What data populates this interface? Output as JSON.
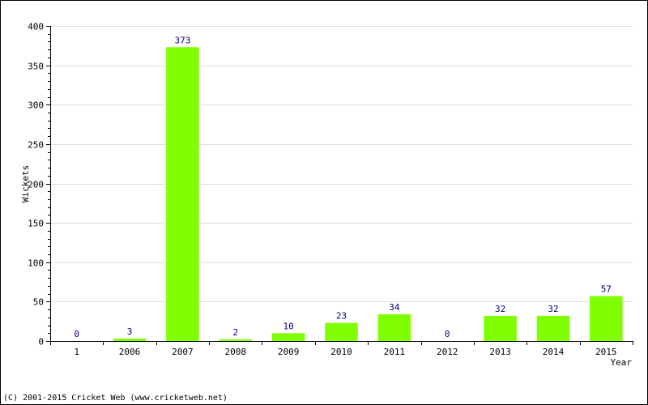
{
  "chart_data": {
    "type": "bar",
    "categories": [
      "1",
      "2006",
      "2007",
      "2008",
      "2009",
      "2010",
      "2011",
      "2012",
      "2013",
      "2014",
      "2015"
    ],
    "values": [
      0,
      3,
      373,
      2,
      10,
      23,
      34,
      0,
      32,
      32,
      57
    ],
    "xlabel": "Year",
    "ylabel": "Wickets",
    "ylim": [
      0,
      400
    ],
    "yticks": [
      0,
      50,
      100,
      150,
      200,
      250,
      300,
      350,
      400
    ],
    "grid": true,
    "bar_color": "#80ff00",
    "value_label_color": "#000080"
  },
  "footer": {
    "copyright": "(C) 2001-2015 Cricket Web (www.cricketweb.net)"
  }
}
